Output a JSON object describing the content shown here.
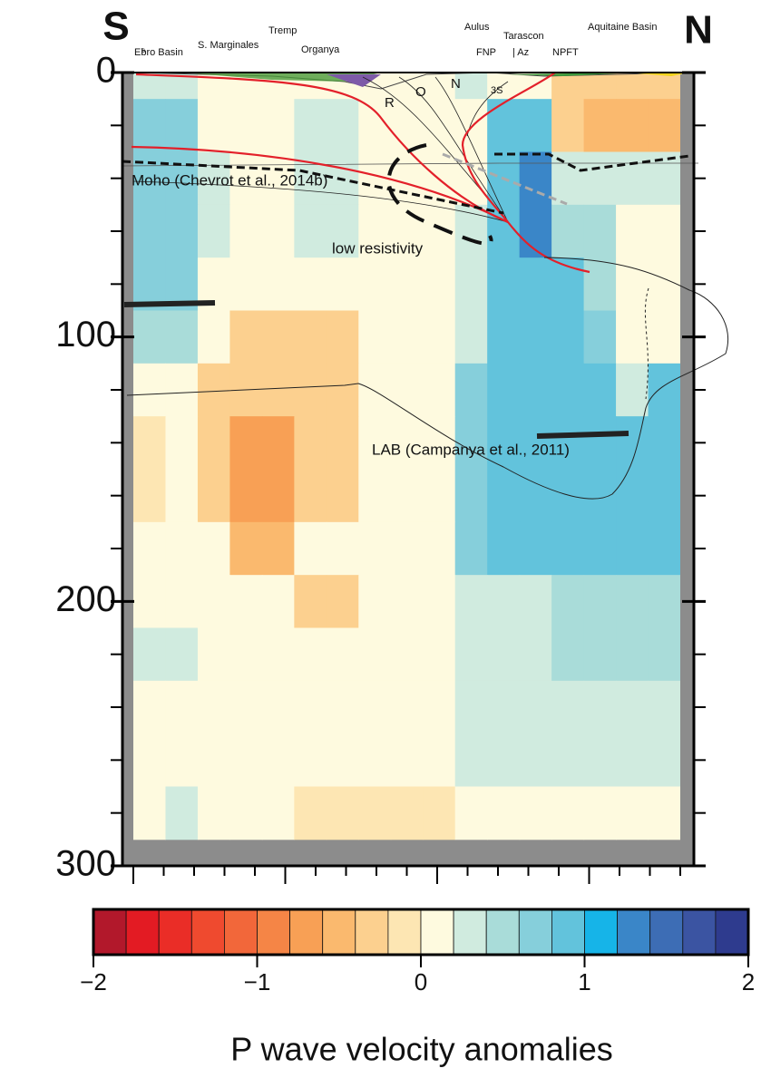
{
  "chart_data": {
    "type": "heatmap",
    "ylim": [
      0,
      300
    ],
    "y_inverted": true,
    "yticks": [
      0,
      100,
      200,
      300
    ],
    "yticks_minor": [
      20,
      40,
      60,
      80,
      120,
      140,
      160,
      180,
      220,
      240,
      260,
      280
    ],
    "y_edges": [
      0,
      10,
      30,
      50,
      70,
      90,
      110,
      130,
      150,
      170,
      190,
      210,
      230,
      250,
      270,
      290,
      300
    ],
    "z": [
      [
        0.3,
        0.3,
        0.1,
        0.1,
        0.1,
        0.1,
        0.1,
        0.1,
        0.1,
        0.1,
        0.4,
        0.1,
        0.1,
        -0.3,
        -0.3,
        -0.3,
        -0.3
      ],
      [
        0.7,
        0.7,
        0.1,
        0.1,
        0.1,
        0.4,
        0.4,
        0.1,
        0.1,
        0.1,
        0.1,
        0.9,
        0.9,
        -0.3,
        -0.5,
        -0.5,
        -0.5
      ],
      [
        0.7,
        0.7,
        0.3,
        0.1,
        0.1,
        0.4,
        0.4,
        0.1,
        0.1,
        0.1,
        0.1,
        0.9,
        1.3,
        0.4,
        0.4,
        0.4,
        0.4
      ],
      [
        0.7,
        0.7,
        0.3,
        0.1,
        0.1,
        0.4,
        0.4,
        0.1,
        0.1,
        0.1,
        0.3,
        0.9,
        1.3,
        0.5,
        0.5,
        0.1,
        0.1
      ],
      [
        0.7,
        0.7,
        0.1,
        0.1,
        0.1,
        0.1,
        0.1,
        0.1,
        0.1,
        0.1,
        0.3,
        0.9,
        0.9,
        0.9,
        0.5,
        0.1,
        0.1
      ],
      [
        0.5,
        0.5,
        0.1,
        -0.3,
        -0.3,
        -0.3,
        -0.3,
        0.1,
        0.1,
        0.1,
        0.3,
        0.9,
        0.9,
        0.9,
        0.7,
        0.1,
        0.1
      ],
      [
        0.1,
        0.1,
        -0.3,
        -0.3,
        -0.3,
        -0.3,
        -0.3,
        0.1,
        0.1,
        0.1,
        0.7,
        0.9,
        0.9,
        0.9,
        0.9,
        0.3,
        0.9
      ],
      [
        -0.1,
        0.1,
        -0.3,
        -0.7,
        -0.7,
        -0.3,
        -0.3,
        0.1,
        0.1,
        0.1,
        0.7,
        0.9,
        0.9,
        0.9,
        0.9,
        0.9,
        0.9
      ],
      [
        -0.1,
        0.1,
        -0.3,
        -0.7,
        -0.7,
        -0.3,
        -0.3,
        0.1,
        0.1,
        0.1,
        0.7,
        0.9,
        0.9,
        0.9,
        0.9,
        0.9,
        0.9
      ],
      [
        0.1,
        0.1,
        0.1,
        -0.5,
        -0.5,
        0.1,
        0.1,
        0.1,
        0.1,
        0.1,
        0.7,
        0.9,
        0.9,
        0.9,
        0.9,
        0.9,
        0.9
      ],
      [
        0.1,
        0.1,
        0.1,
        0.1,
        0.1,
        -0.3,
        -0.3,
        0.1,
        0.1,
        0.1,
        0.3,
        0.3,
        0.3,
        0.5,
        0.5,
        0.5,
        0.5
      ],
      [
        0.3,
        0.3,
        0.1,
        0.1,
        0.1,
        0.1,
        0.1,
        0.1,
        0.1,
        0.1,
        0.3,
        0.3,
        0.3,
        0.5,
        0.5,
        0.5,
        0.5
      ],
      [
        0.1,
        0.1,
        0.1,
        0.1,
        0.1,
        0.1,
        0.1,
        0.1,
        0.1,
        0.1,
        0.3,
        0.3,
        0.3,
        0.3,
        0.3,
        0.3,
        0.3
      ],
      [
        0.1,
        0.1,
        0.1,
        0.1,
        0.1,
        0.1,
        0.1,
        0.1,
        0.1,
        0.1,
        0.3,
        0.3,
        0.3,
        0.3,
        0.3,
        0.3,
        0.3
      ],
      [
        0.1,
        0.3,
        0.1,
        0.1,
        0.1,
        -0.1,
        -0.1,
        -0.1,
        -0.1,
        -0.1,
        0.1,
        0.1,
        0.1,
        0.1,
        0.1,
        0.1,
        0.1
      ],
      [
        null,
        null,
        null,
        null,
        null,
        null,
        null,
        null,
        null,
        null,
        null,
        null,
        null,
        null,
        null,
        null,
        null
      ]
    ],
    "colorbar_lim": [
      -2,
      2
    ],
    "colorbar_colors": [
      "#b2182b",
      "#e31b23",
      "#ea2d27",
      "#ef4a2f",
      "#f2673a",
      "#f58546",
      "#f8a055",
      "#fab96e",
      "#fcd08f",
      "#fde6b3",
      "#fefadf",
      "#d0ebdf",
      "#a9dcd9",
      "#86cfdb",
      "#62c3dc",
      "#16b4e8",
      "#3a86c8",
      "#3d6db5",
      "#3b54a2",
      "#2e3b8e"
    ],
    "colorbar_ticks": [
      {
        "value": -2,
        "label": "−2"
      },
      {
        "value": -1,
        "label": "−1"
      },
      0,
      1,
      2
    ],
    "colorbar_label": "P wave velocity anomalies",
    "annotations": [
      "S",
      "N",
      "s",
      "Ebro Basin",
      "S. Marginales",
      "Tremp",
      "Organya",
      "Aulus",
      "FNP",
      "Tarascon",
      "| Az",
      "NPFT",
      "Aquitaine Basin",
      "R",
      "O",
      "N",
      "3S",
      "Moho (Chevrot et al., 2014b)",
      "low resistivity",
      "LAB (Campanya et al., 2011)"
    ]
  }
}
